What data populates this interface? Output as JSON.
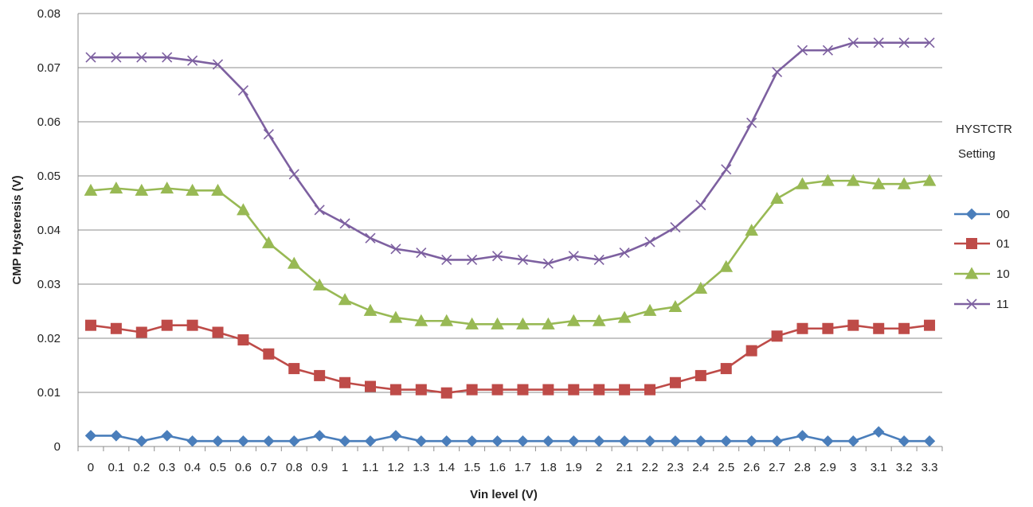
{
  "chart_data": {
    "type": "line",
    "title": "",
    "xlabel": "Vin level (V)",
    "ylabel": "CMP Hysteresis (V)",
    "ylim": [
      0,
      0.08
    ],
    "y_ticks": [
      "0",
      "0.01",
      "0.02",
      "0.03",
      "0.04",
      "0.05",
      "0.06",
      "0.07",
      "0.08"
    ],
    "grid": "horizontal",
    "legend_title": [
      "HYSTCTR",
      "Setting"
    ],
    "legend_position": "right",
    "categories": [
      "0",
      "0.1",
      "0.2",
      "0.3",
      "0.4",
      "0.5",
      "0.6",
      "0.7",
      "0.8",
      "0.9",
      "1",
      "1.1",
      "1.2",
      "1.3",
      "1.4",
      "1.5",
      "1.6",
      "1.7",
      "1.8",
      "1.9",
      "2",
      "2.1",
      "2.2",
      "2.3",
      "2.4",
      "2.5",
      "2.6",
      "2.7",
      "2.8",
      "2.9",
      "3",
      "3.1",
      "3.2",
      "3.3"
    ],
    "series": [
      {
        "name": "00",
        "color": "#4a7ebb",
        "marker": "diamond",
        "values": [
          0.002,
          0.002,
          0.001,
          0.002,
          0.001,
          0.001,
          0.001,
          0.001,
          0.001,
          0.002,
          0.001,
          0.001,
          0.002,
          0.001,
          0.001,
          0.001,
          0.001,
          0.001,
          0.001,
          0.001,
          0.001,
          0.001,
          0.001,
          0.001,
          0.001,
          0.001,
          0.001,
          0.001,
          0.002,
          0.001,
          0.001,
          0.0027,
          0.001,
          0.001
        ]
      },
      {
        "name": "01",
        "color": "#be4b48",
        "marker": "square",
        "values": [
          0.0224,
          0.0218,
          0.0211,
          0.0224,
          0.0224,
          0.0211,
          0.0197,
          0.0171,
          0.0144,
          0.0131,
          0.0118,
          0.0111,
          0.0105,
          0.0105,
          0.0099,
          0.0105,
          0.0105,
          0.0105,
          0.0105,
          0.0105,
          0.0105,
          0.0105,
          0.0105,
          0.0118,
          0.0131,
          0.0144,
          0.0177,
          0.0204,
          0.0218,
          0.0218,
          0.0224,
          0.0218,
          0.0218,
          0.0224
        ]
      },
      {
        "name": "10",
        "color": "#98b954",
        "marker": "triangle",
        "values": [
          0.0473,
          0.0477,
          0.0473,
          0.0477,
          0.0473,
          0.0473,
          0.0437,
          0.0376,
          0.0338,
          0.0298,
          0.0271,
          0.0251,
          0.0238,
          0.0232,
          0.0232,
          0.0226,
          0.0226,
          0.0226,
          0.0226,
          0.0232,
          0.0232,
          0.0238,
          0.0251,
          0.0258,
          0.0292,
          0.0332,
          0.0399,
          0.0458,
          0.0485,
          0.0491,
          0.0491,
          0.0485,
          0.0485,
          0.0491
        ]
      },
      {
        "name": "11",
        "color": "#7d60a0",
        "marker": "x",
        "values": [
          0.0719,
          0.0719,
          0.0719,
          0.0719,
          0.0713,
          0.0706,
          0.0658,
          0.0577,
          0.0503,
          0.0437,
          0.0412,
          0.0385,
          0.0365,
          0.0358,
          0.0345,
          0.0345,
          0.0352,
          0.0345,
          0.0338,
          0.0352,
          0.0345,
          0.0358,
          0.0378,
          0.0405,
          0.0446,
          0.0512,
          0.0598,
          0.0692,
          0.0732,
          0.0732,
          0.0746,
          0.0746,
          0.0746,
          0.0746
        ]
      }
    ]
  }
}
